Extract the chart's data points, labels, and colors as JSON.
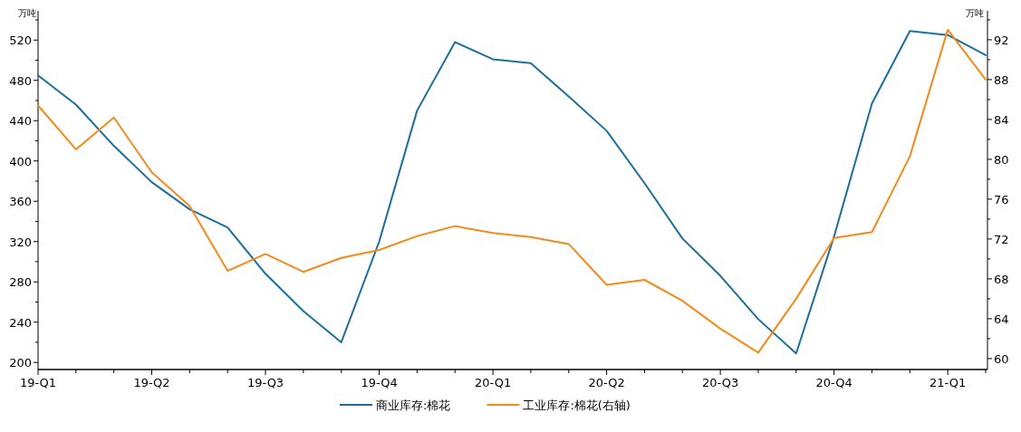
{
  "chart_data": {
    "type": "line",
    "categories": [
      "19-Q1",
      null,
      null,
      "19-Q2",
      null,
      null,
      "19-Q3",
      null,
      null,
      "19-Q4",
      null,
      null,
      "20-Q1",
      null,
      null,
      "20-Q2",
      null,
      null,
      "20-Q3",
      null,
      null,
      "20-Q4",
      null,
      null,
      "21-Q1",
      null
    ],
    "series": [
      {
        "name": "商业库存:棉花",
        "color": "#1b6f9a",
        "values": [
          485,
          456,
          415,
          379,
          352,
          334,
          288,
          251,
          220,
          320,
          450,
          518,
          501,
          497,
          464,
          430,
          378,
          323,
          286,
          243,
          209,
          325,
          457,
          529,
          525,
          505
        ]
      },
      {
        "name": "工业库存:棉花(右轴)",
        "color": "#f28a1c",
        "axis": "y2",
        "values": [
          85.4,
          81.0,
          84.2,
          78.7,
          75.3,
          68.8,
          70.5,
          68.7,
          70.1,
          70.9,
          72.3,
          73.3,
          72.6,
          72.2,
          71.5,
          67.4,
          67.9,
          65.8,
          63.0,
          60.6,
          66.0,
          72.1,
          72.7,
          80.3,
          93.0,
          88.0
        ]
      }
    ],
    "ylabel": "万吨",
    "y2label": "万吨",
    "ylim": [
      193,
      549
    ],
    "yticks": [
      200,
      {
        "value": 220,
        "label": null
      },
      240,
      {
        "value": 260,
        "label": null
      },
      280,
      {
        "value": 300,
        "label": null
      },
      320,
      {
        "value": 340,
        "label": null
      },
      360,
      {
        "value": 380,
        "label": null
      },
      400,
      {
        "value": 420,
        "label": null
      },
      440,
      {
        "value": 460,
        "label": null
      },
      480,
      {
        "value": 500,
        "label": null
      },
      520,
      {
        "value": 540,
        "label": null
      }
    ],
    "y2lim": [
      58.9,
      94.9
    ],
    "y2ticks": [
      60,
      {
        "value": 62,
        "label": null
      },
      64,
      {
        "value": 66,
        "label": null
      },
      68,
      {
        "value": 70,
        "label": null
      },
      72,
      {
        "value": 74,
        "label": null
      },
      76,
      {
        "value": 78,
        "label": null
      },
      80,
      {
        "value": 82,
        "label": null
      },
      84,
      {
        "value": 86,
        "label": null
      },
      88,
      {
        "value": 90,
        "label": null
      },
      92,
      {
        "value": 94,
        "label": null
      }
    ],
    "legend": "bottom",
    "grid": false,
    "marker": "none",
    "line_style": "solid"
  }
}
